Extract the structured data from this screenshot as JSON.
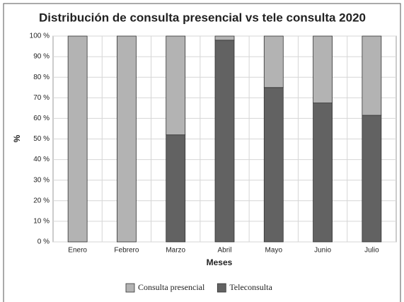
{
  "chart_data": {
    "type": "stacked_bar",
    "title": "Distribución de consulta presencial vs tele consulta 2020",
    "x_label": "Meses",
    "y_label": "%",
    "categories": [
      "Enero",
      "Febrero",
      "Marzo",
      "Abril",
      "Mayo",
      "Junio",
      "Julio"
    ],
    "series": [
      {
        "name": "Consulta presencial",
        "color": "#b3b3b3",
        "values": [
          100,
          100,
          48,
          2,
          25,
          32.5,
          38.5
        ]
      },
      {
        "name": "Teleconsulta",
        "color": "#626262",
        "values": [
          0,
          0,
          52,
          98,
          75,
          67.5,
          61.5
        ]
      }
    ],
    "ylim": [
      0,
      100
    ],
    "yticks": [
      {
        "value": 0,
        "label": "0 %"
      },
      {
        "value": 10,
        "label": "10 %"
      },
      {
        "value": 20,
        "label": "20 %"
      },
      {
        "value": 30,
        "label": "30 %"
      },
      {
        "value": 40,
        "label": "40 %"
      },
      {
        "value": 50,
        "label": "50 %"
      },
      {
        "value": 60,
        "label": "60 %"
      },
      {
        "value": 70,
        "label": "70 %"
      },
      {
        "value": 80,
        "label": "80 %"
      },
      {
        "value": 90,
        "label": "90 %"
      },
      {
        "value": 100,
        "label": "100 %"
      }
    ],
    "grid": true,
    "legend": "bottom"
  }
}
